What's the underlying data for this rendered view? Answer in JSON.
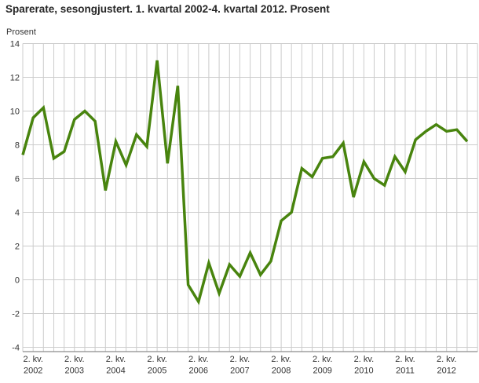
{
  "title": "Sparerate, sesongjustert. 1. kvartal 2002-4. kvartal 2012. Prosent",
  "chart_data": {
    "type": "line",
    "title": "Sparerate, sesongjustert. 1. kvartal 2002-4. kvartal 2012. Prosent",
    "xlabel": "",
    "ylabel": "Prosent",
    "ylim": [
      -4,
      14
    ],
    "ytick_step": 2,
    "yticks": [
      14,
      12,
      10,
      8,
      6,
      4,
      2,
      0,
      -2,
      -4
    ],
    "grid": true,
    "legend_position": "none",
    "x_tick_labels": [
      {
        "quarter": "2. kv.",
        "year": "2002"
      },
      {
        "quarter": "2. kv.",
        "year": "2003"
      },
      {
        "quarter": "2. kv.",
        "year": "2004"
      },
      {
        "quarter": "2. kv.",
        "year": "2005"
      },
      {
        "quarter": "2. kv.",
        "year": "2006"
      },
      {
        "quarter": "2. kv.",
        "year": "2007"
      },
      {
        "quarter": "2. kv.",
        "year": "2008"
      },
      {
        "quarter": "2. kv.",
        "year": "2009"
      },
      {
        "quarter": "2. kv.",
        "year": "2010"
      },
      {
        "quarter": "2. kv.",
        "year": "2011"
      },
      {
        "quarter": "2. kv.",
        "year": "2012"
      }
    ],
    "categories": [
      "1. kv. 2002",
      "2. kv. 2002",
      "3. kv. 2002",
      "4. kv. 2002",
      "1. kv. 2003",
      "2. kv. 2003",
      "3. kv. 2003",
      "4. kv. 2003",
      "1. kv. 2004",
      "2. kv. 2004",
      "3. kv. 2004",
      "4. kv. 2004",
      "1. kv. 2005",
      "2. kv. 2005",
      "3. kv. 2005",
      "4. kv. 2005",
      "1. kv. 2006",
      "2. kv. 2006",
      "3. kv. 2006",
      "4. kv. 2006",
      "1. kv. 2007",
      "2. kv. 2007",
      "3. kv. 2007",
      "4. kv. 2007",
      "1. kv. 2008",
      "2. kv. 2008",
      "3. kv. 2008",
      "4. kv. 2008",
      "1. kv. 2009",
      "2. kv. 2009",
      "3. kv. 2009",
      "4. kv. 2009",
      "1. kv. 2010",
      "2. kv. 2010",
      "3. kv. 2010",
      "4. kv. 2010",
      "1. kv. 2011",
      "2. kv. 2011",
      "3. kv. 2011",
      "4. kv. 2011",
      "1. kv. 2012",
      "2. kv. 2012",
      "3. kv. 2012",
      "4. kv. 2012"
    ],
    "series": [
      {
        "name": "Sparerate, sesongjustert",
        "values": [
          7.4,
          9.6,
          10.2,
          7.2,
          7.6,
          9.5,
          10.0,
          9.4,
          5.3,
          8.2,
          6.8,
          8.6,
          7.9,
          13.0,
          6.9,
          11.5,
          -0.3,
          -1.3,
          1.0,
          -0.8,
          0.9,
          0.2,
          1.6,
          0.3,
          1.1,
          3.5,
          4.0,
          6.6,
          6.1,
          7.2,
          7.3,
          8.1,
          4.9,
          7.0,
          6.0,
          5.6,
          7.3,
          6.4,
          8.3,
          8.8,
          9.2,
          8.8,
          8.9,
          8.2
        ]
      }
    ],
    "colors": {
      "line": "#48840e",
      "grid": "#cccccc",
      "axis_line": "#8c8c8c",
      "text": "#333333",
      "title": "#262626"
    }
  }
}
